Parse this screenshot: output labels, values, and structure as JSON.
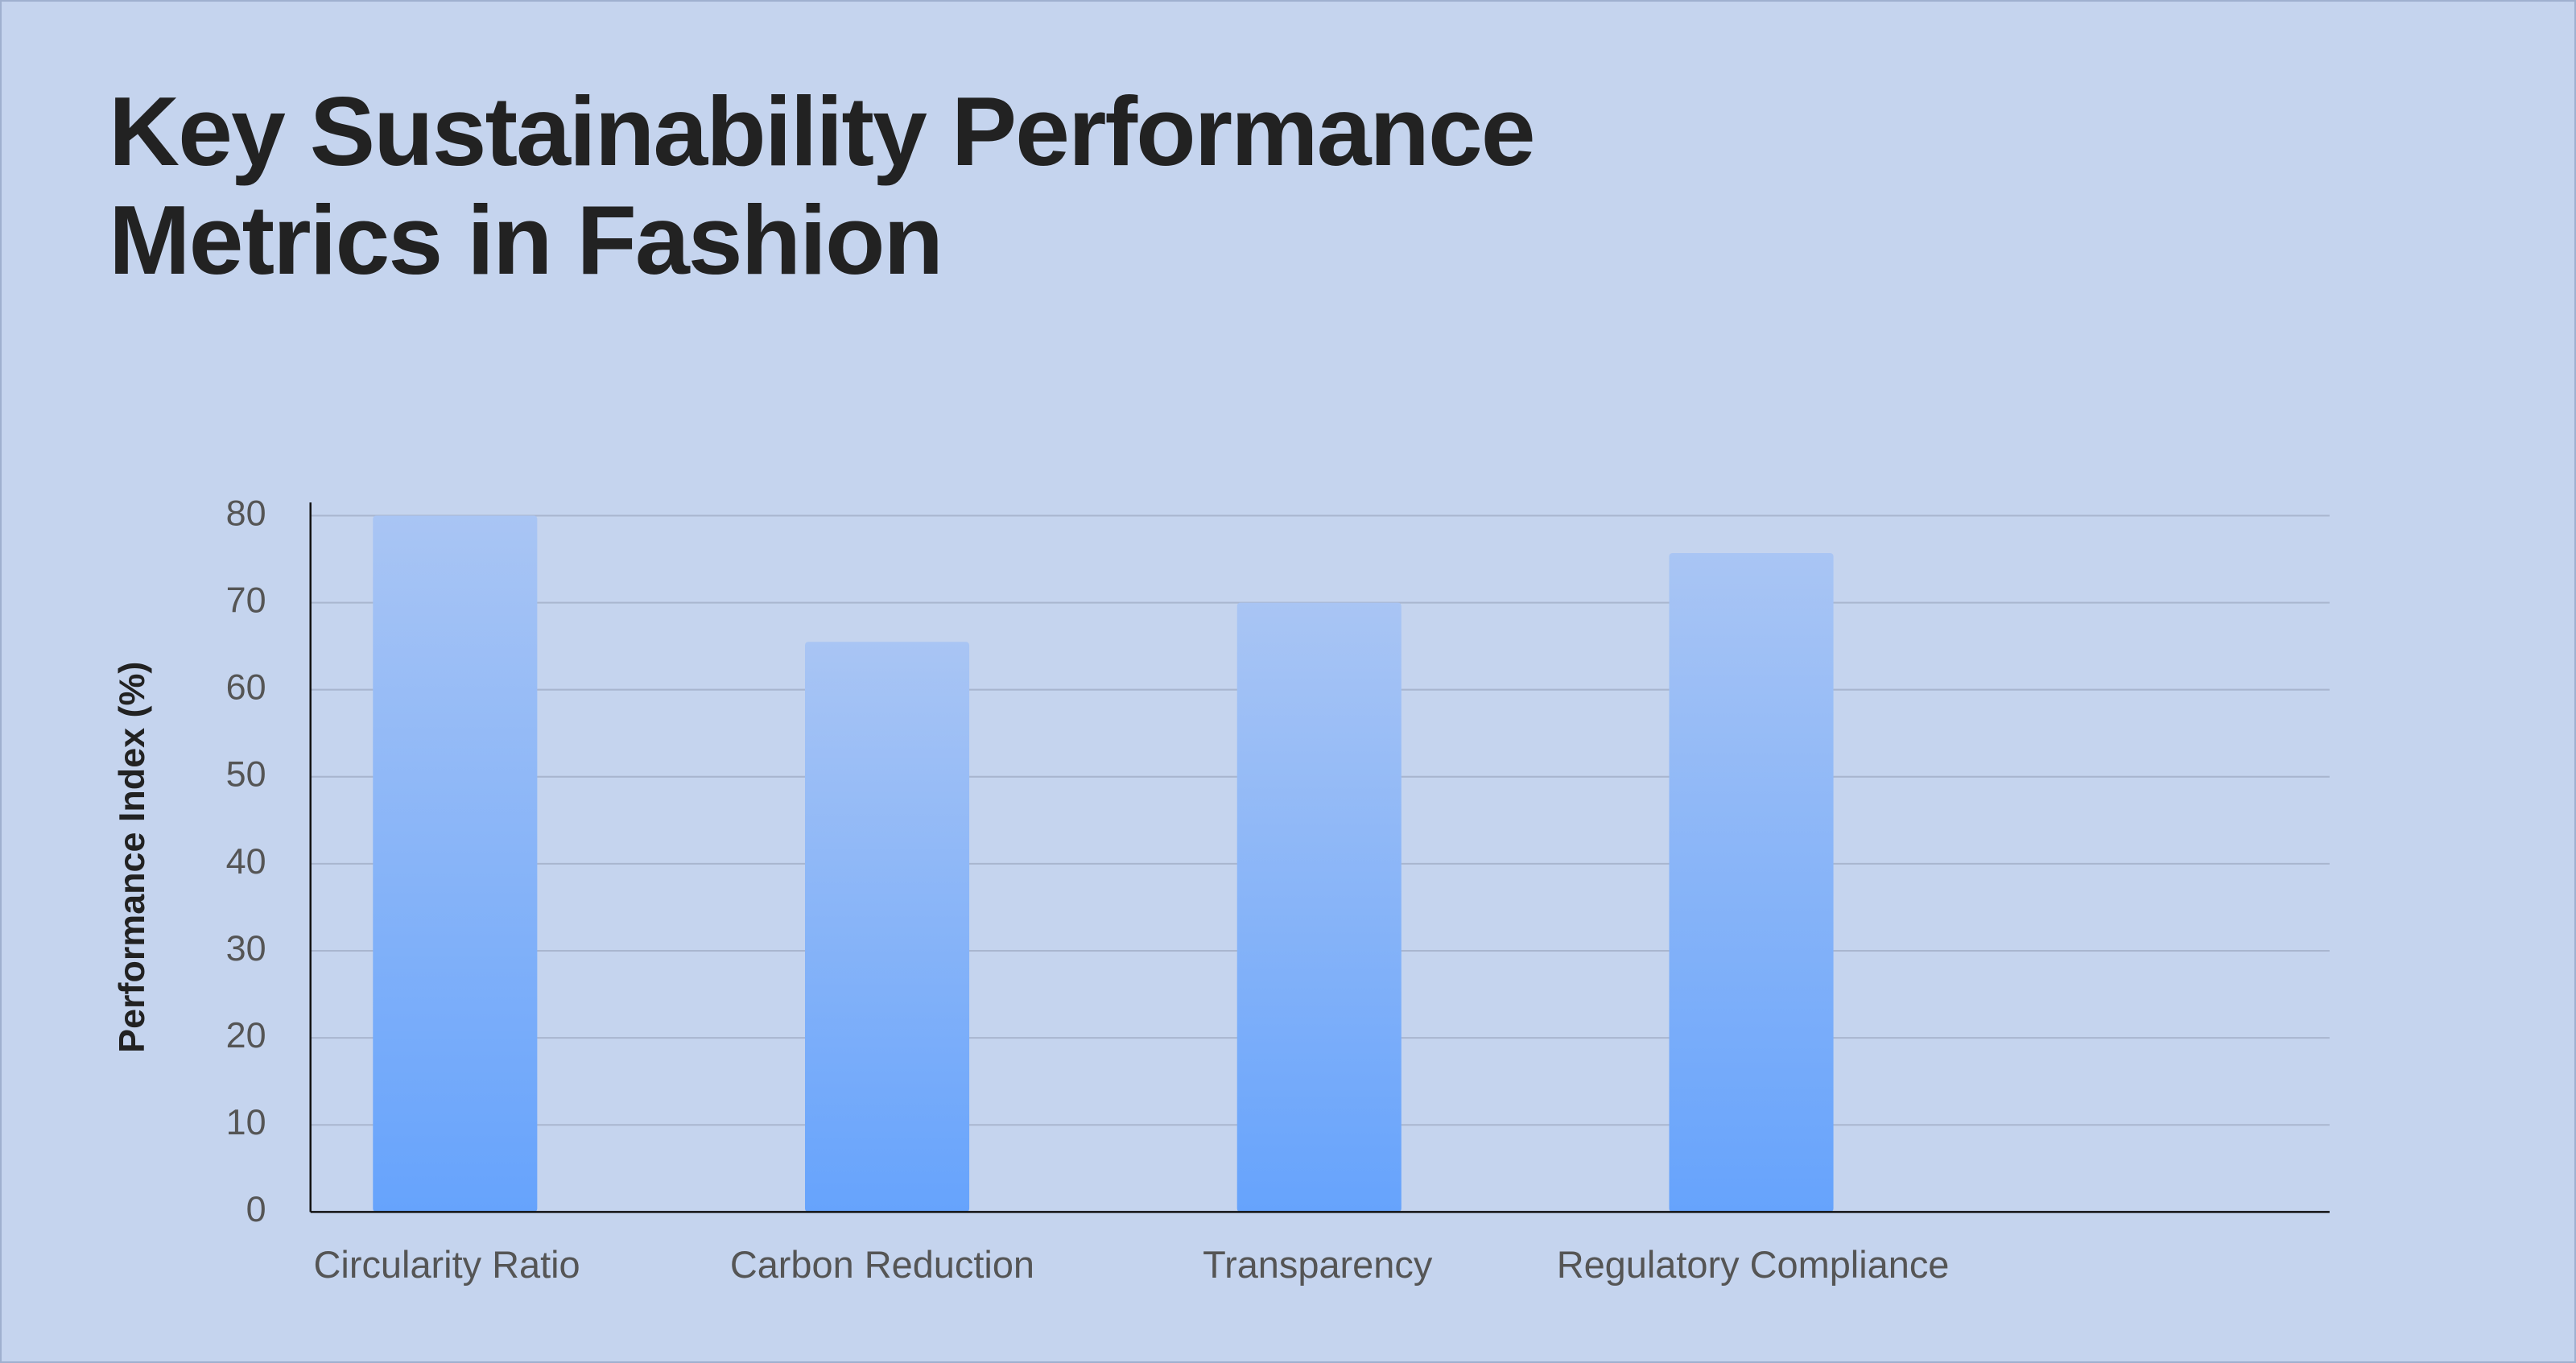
{
  "chart_data": {
    "type": "bar",
    "title": "Key Sustainability Performance Metrics in Fashion",
    "y_label": "Performance Index (%)",
    "categories": [
      "Circularity Ratio",
      "Carbon Reduction",
      "Transparency",
      "Regulatory Compliance"
    ],
    "values": [
      80,
      65.5,
      70,
      75.7
    ],
    "color_top": "#a9c5f4",
    "color_bottom": "#66a3fc",
    "ylim": [
      0,
      80
    ],
    "yticks": [
      0,
      10,
      20,
      30,
      40,
      50,
      60,
      70,
      80
    ],
    "grid": true
  }
}
